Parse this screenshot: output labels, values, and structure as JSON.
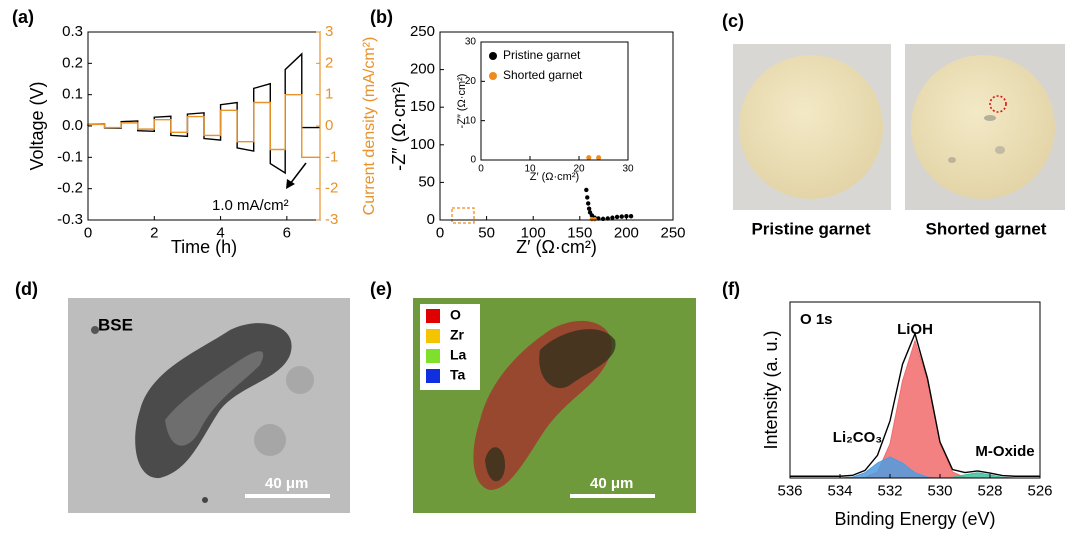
{
  "panel_labels": [
    "(a)",
    "(b)",
    "(c)",
    "(d)",
    "(e)",
    "(f)"
  ],
  "chart_data": [
    {
      "type": "line",
      "xlabel": "Time (h)",
      "ylabel": "Voltage (V)",
      "y2label": "Current density (mA/cm²)",
      "annotation": "1.0 mA/cm²",
      "xlim": [
        0,
        7
      ],
      "xticks": [
        0,
        2,
        4,
        6
      ],
      "ylim": [
        -0.3,
        0.3
      ],
      "yticks": [
        -0.3,
        -0.2,
        -0.1,
        {
          "value": 0,
          "label": "0.0"
        },
        0.1,
        0.2,
        0.3
      ],
      "y2lim": [
        -3,
        3
      ],
      "y2ticks": [
        -3,
        -2,
        -1,
        0,
        1,
        2,
        3
      ],
      "series": [
        {
          "color": "#000000",
          "axis": "y",
          "x": [
            0,
            0,
            0.5,
            0.5,
            1,
            1,
            1.5,
            1.5,
            2,
            2,
            2.5,
            2.5,
            3,
            3,
            3.5,
            3.5,
            4,
            4,
            4.5,
            4.5,
            5,
            5,
            5.5,
            5.5,
            5.95,
            5.95,
            6.45,
            6.45,
            7
          ],
          "values": [
            0,
            0.005,
            0.006,
            -0.006,
            -0.007,
            0.014,
            0.016,
            -0.015,
            -0.017,
            0.028,
            0.031,
            -0.03,
            -0.033,
            0.038,
            0.042,
            -0.04,
            -0.045,
            0.068,
            0.075,
            -0.07,
            -0.08,
            0.12,
            0.135,
            -0.12,
            -0.15,
            0.18,
            0.23,
            -0.005,
            -0.005
          ]
        },
        {
          "color": "#e8922a",
          "axis": "y2",
          "x": [
            0,
            0,
            0.5,
            0.5,
            1,
            1,
            1.5,
            1.5,
            2,
            2,
            2.5,
            2.5,
            3,
            3,
            3.5,
            3.5,
            4,
            4,
            4.5,
            4.5,
            5,
            5,
            5.5,
            5.5,
            5.95,
            5.95,
            6.45,
            6.45,
            7
          ],
          "values": [
            0,
            0.05,
            0.05,
            -0.05,
            -0.05,
            0.1,
            0.1,
            -0.1,
            -0.1,
            0.2,
            0.2,
            -0.2,
            -0.2,
            0.3,
            0.3,
            -0.3,
            -0.3,
            0.5,
            0.5,
            -0.5,
            -0.5,
            0.75,
            0.75,
            -0.75,
            -0.75,
            1,
            1,
            -1,
            -1
          ]
        }
      ]
    },
    {
      "type": "scatter",
      "xlabel": "Z′ (Ω·cm²)",
      "ylabel": "-Z″ (Ω·cm²)",
      "xlim": [
        0,
        250
      ],
      "xticks": [
        0,
        50,
        100,
        150,
        200,
        250
      ],
      "ylim": [
        0,
        250
      ],
      "yticks": [
        0,
        50,
        100,
        150,
        200,
        250
      ],
      "series": [
        {
          "color": "#000000",
          "x": [
            157,
            158,
            159,
            160,
            161,
            163,
            166,
            170,
            175,
            180,
            185,
            190,
            195,
            200,
            205
          ],
          "values": [
            40,
            30,
            22,
            15,
            10,
            6,
            3,
            2,
            1.5,
            2,
            3,
            4,
            4.5,
            5,
            5
          ]
        },
        {
          "color": "#f08a1c",
          "x": [
            163,
            166
          ],
          "values": [
            1,
            1
          ]
        }
      ]
    },
    {
      "type": "scatter",
      "xlabel": "Z′ (Ω·cm²)",
      "ylabel": "-Z″ (Ω·cm²)",
      "xlim": [
        0,
        30
      ],
      "xticks": [
        0,
        10,
        20,
        30
      ],
      "ylim": [
        0,
        30
      ],
      "yticks": [
        0,
        10,
        20,
        30
      ],
      "series": [
        {
          "name": "Pristine garnet",
          "color": "#000000",
          "x": [],
          "values": []
        },
        {
          "name": "Shorted garnet",
          "color": "#f08a1c",
          "x": [
            22,
            24
          ],
          "values": [
            0.6,
            0.6
          ]
        }
      ]
    },
    {
      "type": "area",
      "xlabel": "Binding Energy (eV)",
      "ylabel": "Intensity (a. u.)",
      "annotations": [
        "O 1s",
        "LiOH",
        "Li₂CO₃",
        "M-Oxide"
      ],
      "xlim": [
        536,
        526
      ],
      "xticks": [
        536,
        534,
        532,
        530,
        528,
        526
      ],
      "ylim": [
        0,
        100
      ],
      "x": [
        536,
        535.5,
        535,
        534.5,
        534,
        533.5,
        533,
        532.5,
        532,
        531.5,
        531,
        530.5,
        530,
        529.5,
        529,
        528.5,
        528,
        527.5,
        527,
        526.5,
        526
      ],
      "series": [
        {
          "color": "#f26b6b",
          "fill": true,
          "values": [
            0,
            0,
            0,
            0,
            0,
            0,
            0.3,
            3.4,
            19.4,
            55.1,
            78,
            55.1,
            19.4,
            3.4,
            0.3,
            0,
            0,
            0,
            0,
            0,
            0
          ]
        },
        {
          "color": "#4f9be0",
          "fill": true,
          "values": [
            0,
            0,
            0,
            0,
            0,
            0.5,
            3.0,
            8.5,
            12,
            8.5,
            3.0,
            0.5,
            0,
            0,
            0,
            0,
            0,
            0,
            0,
            0,
            0
          ]
        },
        {
          "color": "#3fbf9f",
          "fill": true,
          "values": [
            0,
            0,
            0,
            0,
            0,
            0,
            0,
            0,
            0,
            0,
            0,
            0,
            0,
            0.4,
            1.8,
            3,
            1.8,
            0.4,
            0,
            0,
            0
          ]
        },
        {
          "color": "#000000",
          "fill": false,
          "values": [
            1,
            1,
            1,
            1,
            1,
            1.5,
            4.3,
            12.9,
            32.4,
            64.6,
            82,
            56.6,
            20.4,
            4.8,
            3.1,
            4,
            2.8,
            1.4,
            1,
            1,
            1
          ]
        }
      ]
    }
  ],
  "photos": {
    "c": {
      "captions": [
        "Pristine garnet",
        "Shorted garnet"
      ]
    },
    "d": {
      "label": "BSE",
      "scale_bar": "40 μm"
    },
    "e": {
      "legend": [
        {
          "name": "O",
          "color": "#e00000"
        },
        {
          "name": "Zr",
          "color": "#f5c400"
        },
        {
          "name": "La",
          "color": "#7ee02a"
        },
        {
          "name": "Ta",
          "color": "#1030e0"
        }
      ],
      "scale_bar": "40 μm"
    }
  }
}
